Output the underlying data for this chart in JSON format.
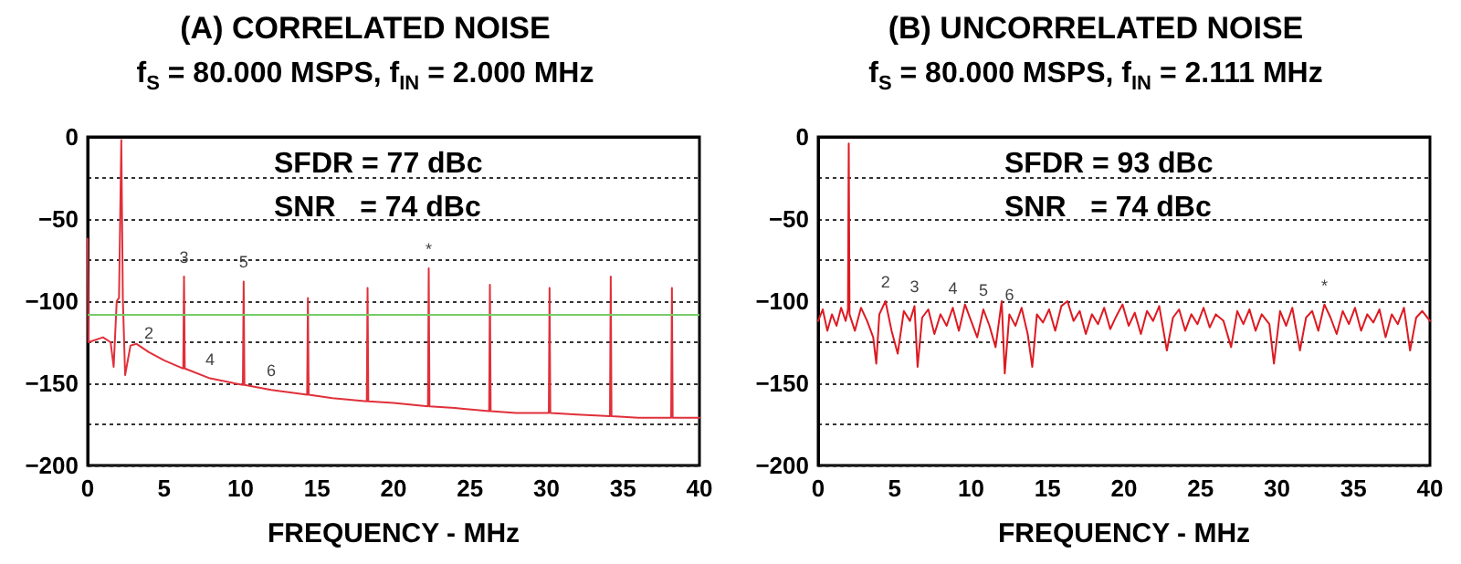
{
  "chart_data": [
    {
      "type": "line",
      "title": "(A) CORRELATED NOISE",
      "subtitle": "f$_{S}$ = 80.000 MSPS, f$_{IN}$ = 2.000 MHz",
      "xlabel": "FREQUENCY - MHz",
      "xlim": [
        0,
        40
      ],
      "xticks": [
        0,
        5,
        10,
        15,
        20,
        25,
        30,
        35,
        40
      ],
      "ylim": [
        -200,
        0
      ],
      "yticks": [
        {
          "value": -200,
          "label": "−200"
        },
        {
          "value": -175,
          "label": null
        },
        {
          "value": -150,
          "label": "−150"
        },
        {
          "value": -125,
          "label": null
        },
        {
          "value": -100,
          "label": "−100"
        },
        {
          "value": -75,
          "label": null
        },
        {
          "value": -50,
          "label": "−50"
        },
        {
          "value": -25,
          "label": null
        },
        0
      ],
      "grid": "y",
      "line_style": "solid",
      "marker": "none",
      "ref_lines": [
        {
          "axis": "y",
          "value": -108,
          "color": "#77cc66"
        }
      ],
      "annotations": [
        "SFDR = 77 dBc",
        "SNR   = 74 dBc",
        {
          "text": "2",
          "x": 4,
          "y": -131
        },
        {
          "text": "3",
          "x": 6.3,
          "y": -85
        },
        {
          "text": "4",
          "x": 8,
          "y": -147
        },
        {
          "text": "5",
          "x": 10.2,
          "y": -88
        },
        {
          "text": "6",
          "x": 12,
          "y": -154
        },
        {
          "text": "*",
          "x": 22.3,
          "y": -80
        }
      ],
      "series": [
        {
          "color": "#e0303a",
          "x": [
            0,
            0.05,
            1,
            1.5,
            1.7,
            1.9,
            2.05,
            2.2,
            2.3,
            2.45,
            2.8,
            3.2,
            4,
            5,
            6.25,
            6.3,
            6.35,
            8,
            10.15,
            10.2,
            10.25,
            12,
            14.35,
            14.4,
            14.45,
            16,
            18.25,
            18.3,
            18.35,
            20,
            22.25,
            22.3,
            22.35,
            24,
            26.25,
            26.3,
            26.35,
            28,
            30.15,
            30.2,
            30.25,
            32,
            34.15,
            34.2,
            34.25,
            36,
            38.15,
            38.2,
            38.25,
            40
          ],
          "values": [
            -62,
            -125,
            -122,
            -125,
            -140,
            -100,
            -98,
            -2,
            -98,
            -145,
            -127,
            -126,
            -131,
            -136,
            -141,
            -85,
            -141,
            -147,
            -151,
            -88,
            -151,
            -154,
            -157,
            -98,
            -157,
            -159,
            -161,
            -92,
            -161,
            -162,
            -164,
            -80,
            -164,
            -165,
            -167,
            -90,
            -167,
            -168,
            -168,
            -92,
            -168,
            -169,
            -170,
            -85,
            -170,
            -171,
            -171,
            -92,
            -171,
            -171
          ]
        }
      ]
    },
    {
      "type": "line",
      "title": "(B) UNCORRELATED NOISE",
      "subtitle": "f$_{S}$ = 80.000 MSPS, f$_{IN}$ = 2.111 MHz",
      "xlabel": "FREQUENCY - MHz",
      "xlim": [
        0,
        40
      ],
      "xticks": [
        0,
        5,
        10,
        15,
        20,
        25,
        30,
        35,
        40
      ],
      "ylim": [
        -200,
        0
      ],
      "yticks": [
        {
          "value": -200,
          "label": "−200"
        },
        {
          "value": -175,
          "label": null
        },
        {
          "value": -150,
          "label": "−150"
        },
        {
          "value": -125,
          "label": null
        },
        {
          "value": -100,
          "label": "−100"
        },
        {
          "value": -75,
          "label": null
        },
        {
          "value": -50,
          "label": "−50"
        },
        {
          "value": -25,
          "label": null
        },
        0
      ],
      "grid": "y",
      "line_style": "solid",
      "marker": "none",
      "annotations": [
        "SFDR = 93 dBc",
        "SNR   = 74 dBc",
        {
          "text": "2",
          "x": 4.4,
          "y": -100
        },
        {
          "text": "3",
          "x": 6.3,
          "y": -103
        },
        {
          "text": "4",
          "x": 8.8,
          "y": -104
        },
        {
          "text": "5",
          "x": 10.8,
          "y": -105
        },
        {
          "text": "6",
          "x": 12.5,
          "y": -108
        },
        {
          "text": "*",
          "x": 33.1,
          "y": -102
        }
      ],
      "series": [
        {
          "color": "#dd1a22",
          "x": [
            0,
            0.3,
            0.6,
            0.9,
            1.2,
            1.5,
            1.8,
            1.95,
            2.0,
            2.05,
            2.4,
            2.8,
            3.2,
            3.6,
            3.8,
            4.0,
            4.4,
            4.8,
            5.2,
            5.6,
            6.0,
            6.3,
            6.5,
            6.8,
            7.2,
            7.6,
            8.0,
            8.4,
            8.8,
            9.2,
            9.6,
            10.0,
            10.4,
            10.8,
            11.2,
            11.6,
            12.0,
            12.2,
            12.5,
            12.9,
            13.3,
            13.7,
            14.0,
            14.3,
            14.7,
            15.1,
            15.5,
            15.9,
            16.3,
            16.7,
            17.1,
            17.5,
            17.9,
            18.3,
            18.7,
            19.1,
            19.5,
            19.9,
            20.3,
            20.7,
            21.1,
            21.5,
            21.9,
            22.3,
            22.8,
            23.2,
            23.6,
            24.0,
            24.4,
            24.8,
            25.2,
            25.6,
            26.0,
            26.5,
            27.0,
            27.4,
            27.8,
            28.2,
            28.6,
            29.0,
            29.5,
            29.8,
            30.2,
            30.6,
            31.0,
            31.5,
            31.9,
            32.3,
            32.7,
            33.1,
            33.5,
            33.9,
            34.3,
            34.7,
            35.1,
            35.5,
            35.9,
            36.3,
            36.7,
            37.1,
            37.5,
            37.9,
            38.3,
            38.7,
            39.1,
            39.5,
            40
          ],
          "values": [
            -112,
            -105,
            -118,
            -108,
            -115,
            -104,
            -112,
            -105,
            -4,
            -108,
            -118,
            -104,
            -112,
            -122,
            -138,
            -108,
            -100,
            -118,
            -132,
            -106,
            -112,
            -103,
            -140,
            -110,
            -105,
            -120,
            -108,
            -115,
            -104,
            -118,
            -102,
            -112,
            -122,
            -105,
            -115,
            -128,
            -100,
            -144,
            -108,
            -115,
            -104,
            -120,
            -140,
            -108,
            -113,
            -105,
            -118,
            -103,
            -100,
            -112,
            -106,
            -120,
            -108,
            -114,
            -104,
            -117,
            -109,
            -102,
            -115,
            -107,
            -120,
            -106,
            -112,
            -103,
            -130,
            -110,
            -105,
            -118,
            -108,
            -114,
            -104,
            -116,
            -108,
            -112,
            -128,
            -106,
            -114,
            -105,
            -118,
            -108,
            -114,
            -138,
            -106,
            -115,
            -104,
            -130,
            -110,
            -106,
            -118,
            -102,
            -110,
            -120,
            -106,
            -114,
            -104,
            -118,
            -108,
            -113,
            -105,
            -122,
            -108,
            -114,
            -104,
            -130,
            -110,
            -106,
            -112
          ]
        }
      ]
    }
  ]
}
